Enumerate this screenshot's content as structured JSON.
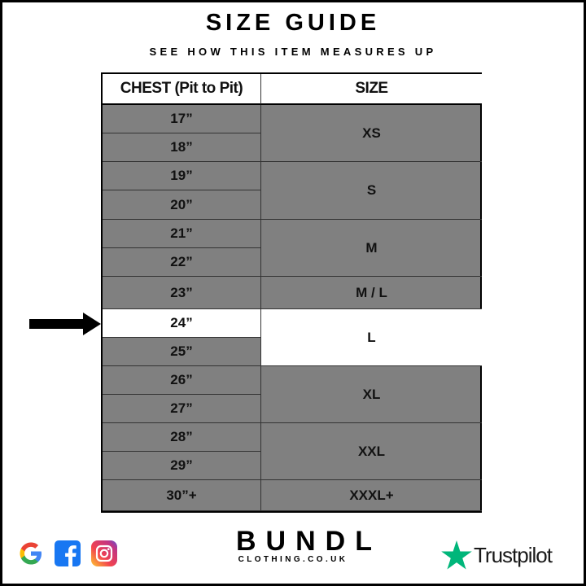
{
  "title": "SIZE GUIDE",
  "subtitle": "SEE HOW THIS ITEM MEASURES UP",
  "table": {
    "headers": [
      "CHEST (Pit to Pit)",
      "SIZE"
    ],
    "chest": [
      "17”",
      "18”",
      "19”",
      "20”",
      "21”",
      "22”",
      "23”",
      "24”",
      "25”",
      "26”",
      "27”",
      "28”",
      "29”",
      "30”+"
    ],
    "sizes": [
      "XS",
      "S",
      "M",
      "M / L",
      "L",
      "XL",
      "XXL",
      "XXXL+"
    ],
    "highlighted_chest": "24”",
    "highlighted_size": "L"
  },
  "colors": {
    "row": "#808080",
    "highlight": "#ffffff",
    "trustpilot": "#00b67a"
  },
  "footer": {
    "social_icons": [
      "google-icon",
      "facebook-icon",
      "instagram-icon"
    ],
    "brand": "BUNDL",
    "brand_sub": "CLOTHING.CO.UK",
    "trustpilot": "Trustpilot"
  }
}
